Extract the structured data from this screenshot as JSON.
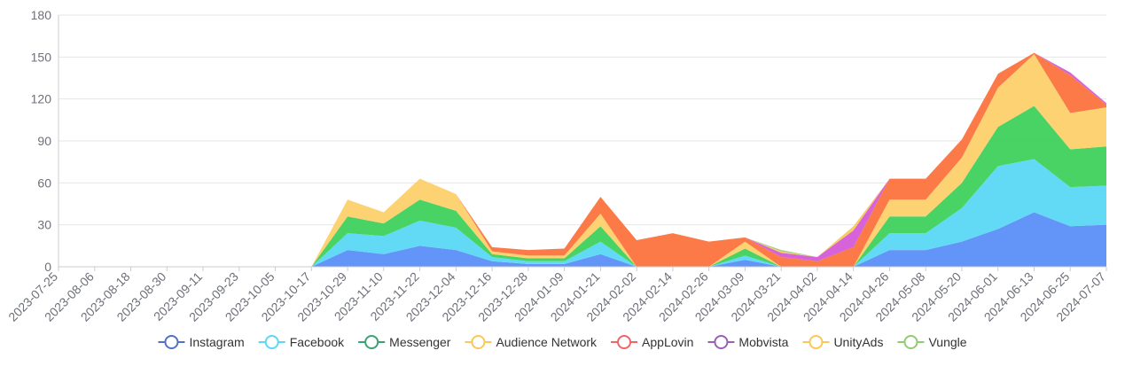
{
  "chart_data": {
    "type": "area",
    "stacked": true,
    "ylim": [
      0,
      180
    ],
    "yticks": [
      0,
      30,
      60,
      90,
      120,
      150,
      180
    ],
    "xlabel": "",
    "ylabel": "",
    "grid": true,
    "legend_position": "bottom",
    "categories": [
      "2023-07-25",
      "2023-08-06",
      "2023-08-18",
      "2023-08-30",
      "2023-09-11",
      "2023-09-23",
      "2023-10-05",
      "2023-10-17",
      "2023-10-29",
      "2023-11-10",
      "2023-11-22",
      "2023-12-04",
      "2023-12-16",
      "2023-12-28",
      "2024-01-09",
      "2024-01-21",
      "2024-02-02",
      "2024-02-14",
      "2024-02-26",
      "2024-03-09",
      "2024-03-21",
      "2024-04-02",
      "2024-04-14",
      "2024-04-26",
      "2024-05-08",
      "2024-05-20",
      "2024-06-01",
      "2024-06-13",
      "2024-06-25",
      "2024-07-07"
    ],
    "series": [
      {
        "name": "Instagram",
        "color": "#5b8ff9",
        "values": [
          0,
          0,
          0,
          0,
          0,
          0,
          0,
          0,
          12,
          9,
          15,
          12,
          4,
          2,
          2,
          9,
          0,
          0,
          0,
          5,
          0,
          0,
          0,
          12,
          12,
          18,
          27,
          39,
          29,
          30
        ]
      },
      {
        "name": "Facebook",
        "color": "#5ad8f5",
        "values": [
          0,
          0,
          0,
          0,
          0,
          0,
          0,
          0,
          12,
          13,
          18,
          16,
          3,
          2,
          2,
          9,
          0,
          0,
          0,
          3,
          0,
          0,
          0,
          12,
          12,
          24,
          45,
          38,
          28,
          28
        ]
      },
      {
        "name": "Messenger",
        "color": "#3ed15c",
        "values": [
          0,
          0,
          0,
          0,
          0,
          0,
          0,
          0,
          12,
          9,
          15,
          12,
          2,
          2,
          2,
          11,
          0,
          0,
          0,
          5,
          0,
          0,
          0,
          12,
          12,
          18,
          28,
          38,
          27,
          28
        ]
      },
      {
        "name": "Audience Network",
        "color": "#fdd06a",
        "values": [
          0,
          0,
          0,
          0,
          0,
          0,
          0,
          0,
          12,
          8,
          15,
          12,
          2,
          2,
          2,
          9,
          0,
          0,
          0,
          5,
          0,
          0,
          0,
          12,
          12,
          18,
          28,
          37,
          26,
          28
        ]
      },
      {
        "name": "AppLovin",
        "color": "#fb733e",
        "values": [
          0,
          0,
          0,
          0,
          0,
          0,
          0,
          0,
          0,
          0,
          0,
          0,
          3,
          4,
          5,
          12,
          19,
          24,
          18,
          3,
          7,
          4,
          14,
          15,
          15,
          13,
          10,
          1,
          27,
          2
        ]
      },
      {
        "name": "Mobvista",
        "color": "#d45bd8",
        "values": [
          0,
          0,
          0,
          0,
          0,
          0,
          0,
          0,
          0,
          0,
          0,
          0,
          0,
          0,
          0,
          0,
          0,
          0,
          0,
          0,
          3,
          3,
          12,
          0,
          0,
          0,
          0,
          0,
          2,
          1
        ]
      },
      {
        "name": "UnityAds",
        "color": "#fac858",
        "values": [
          0,
          0,
          0,
          0,
          0,
          0,
          0,
          0,
          0,
          0,
          0,
          0,
          0,
          0,
          0,
          0,
          0,
          0,
          0,
          0,
          1,
          0,
          3,
          0,
          0,
          0,
          0,
          0,
          0,
          0
        ]
      },
      {
        "name": "Vungle",
        "color": "#91cc75",
        "values": [
          0,
          0,
          0,
          0,
          0,
          0,
          0,
          0,
          0,
          0,
          0,
          0,
          0,
          0,
          0,
          0,
          0,
          0,
          0,
          0,
          1,
          0,
          0,
          0,
          0,
          0,
          0,
          0,
          0,
          0
        ]
      }
    ],
    "legend_symbol_colors": [
      "#5470c6",
      "#5ad8f5",
      "#3ba272",
      "#fac858",
      "#ee6666",
      "#9a60b4",
      "#fac858",
      "#91cc75"
    ]
  }
}
